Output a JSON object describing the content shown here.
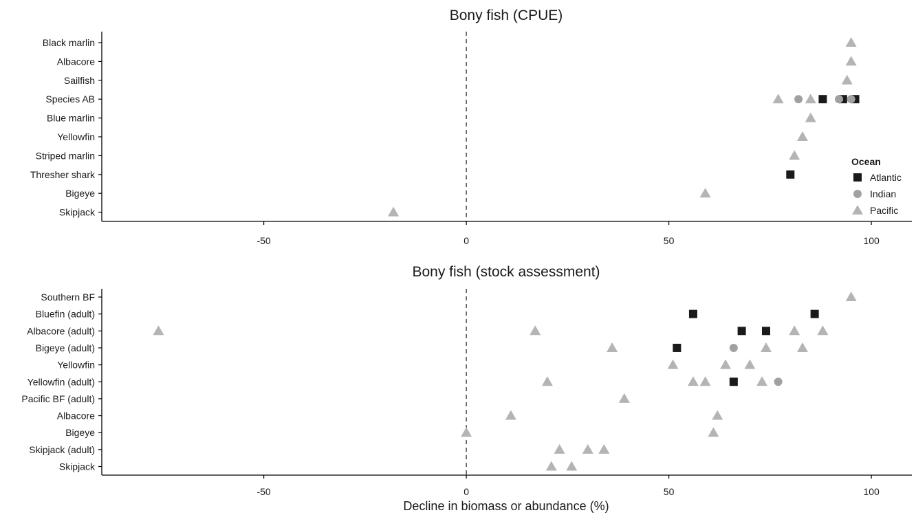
{
  "colors": {
    "Atlantic": "#1a1a1a",
    "Indian": "#a1a1a3",
    "Pacific": "#b4b4b6"
  },
  "shapes": {
    "Atlantic": "square",
    "Indian": "circle",
    "Pacific": "triangle"
  },
  "chart_data": {
    "type": "scatter",
    "xlabel": "Decline in biomass or abundance (%)",
    "xlim": [
      -90,
      110
    ],
    "xticks": [
      -50,
      0,
      50,
      100
    ],
    "reference_line": {
      "x": 0,
      "style": "dashed"
    },
    "legend": {
      "title": "Ocean",
      "placement": "right",
      "entries": [
        "Atlantic",
        "Indian",
        "Pacific"
      ]
    },
    "grid": false,
    "panels": [
      {
        "title": "Bony fish (CPUE)",
        "categories": [
          "Black marlin",
          "Albacore",
          "Sailfish",
          "Species AB",
          "Blue marlin",
          "Yellowfin",
          "Striped marlin",
          "Thresher shark",
          "Bigeye",
          "Skipjack"
        ],
        "points": [
          {
            "category": "Black marlin",
            "ocean": "Pacific",
            "x": 95
          },
          {
            "category": "Albacore",
            "ocean": "Pacific",
            "x": 95
          },
          {
            "category": "Sailfish",
            "ocean": "Pacific",
            "x": 94
          },
          {
            "category": "Species AB",
            "ocean": "Pacific",
            "x": 77
          },
          {
            "category": "Species AB",
            "ocean": "Indian",
            "x": 82
          },
          {
            "category": "Species AB",
            "ocean": "Pacific",
            "x": 85
          },
          {
            "category": "Species AB",
            "ocean": "Atlantic",
            "x": 88
          },
          {
            "category": "Species AB",
            "ocean": "Atlantic",
            "x": 93
          },
          {
            "category": "Species AB",
            "ocean": "Indian",
            "x": 92
          },
          {
            "category": "Species AB",
            "ocean": "Atlantic",
            "x": 96
          },
          {
            "category": "Species AB",
            "ocean": "Indian",
            "x": 95
          },
          {
            "category": "Blue marlin",
            "ocean": "Pacific",
            "x": 85
          },
          {
            "category": "Yellowfin",
            "ocean": "Pacific",
            "x": 83
          },
          {
            "category": "Striped marlin",
            "ocean": "Pacific",
            "x": 81
          },
          {
            "category": "Thresher shark",
            "ocean": "Atlantic",
            "x": 80
          },
          {
            "category": "Bigeye",
            "ocean": "Pacific",
            "x": 59
          },
          {
            "category": "Skipjack",
            "ocean": "Pacific",
            "x": -18
          }
        ]
      },
      {
        "title": "Bony fish (stock assessment)",
        "categories": [
          "Southern BF",
          "Bluefin (adult)",
          "Albacore (adult)",
          "Bigeye (adult)",
          "Yellowfin",
          "Yellowfin (adult)",
          "Pacific BF (adult)",
          "Albacore",
          "Bigeye",
          "Skipjack (adult)",
          "Skipjack"
        ],
        "points": [
          {
            "category": "Southern BF",
            "ocean": "Pacific",
            "x": 95
          },
          {
            "category": "Bluefin (adult)",
            "ocean": "Atlantic",
            "x": 56
          },
          {
            "category": "Bluefin (adult)",
            "ocean": "Atlantic",
            "x": 86
          },
          {
            "category": "Albacore (adult)",
            "ocean": "Pacific",
            "x": -76
          },
          {
            "category": "Albacore (adult)",
            "ocean": "Pacific",
            "x": 17
          },
          {
            "category": "Albacore (adult)",
            "ocean": "Atlantic",
            "x": 68
          },
          {
            "category": "Albacore (adult)",
            "ocean": "Atlantic",
            "x": 74
          },
          {
            "category": "Albacore (adult)",
            "ocean": "Pacific",
            "x": 81
          },
          {
            "category": "Albacore (adult)",
            "ocean": "Pacific",
            "x": 88
          },
          {
            "category": "Bigeye (adult)",
            "ocean": "Pacific",
            "x": 36
          },
          {
            "category": "Bigeye (adult)",
            "ocean": "Atlantic",
            "x": 52
          },
          {
            "category": "Bigeye (adult)",
            "ocean": "Indian",
            "x": 66
          },
          {
            "category": "Bigeye (adult)",
            "ocean": "Pacific",
            "x": 74
          },
          {
            "category": "Bigeye (adult)",
            "ocean": "Pacific",
            "x": 83
          },
          {
            "category": "Yellowfin",
            "ocean": "Pacific",
            "x": 51
          },
          {
            "category": "Yellowfin",
            "ocean": "Pacific",
            "x": 64
          },
          {
            "category": "Yellowfin",
            "ocean": "Pacific",
            "x": 70
          },
          {
            "category": "Yellowfin (adult)",
            "ocean": "Pacific",
            "x": 20
          },
          {
            "category": "Yellowfin (adult)",
            "ocean": "Pacific",
            "x": 56
          },
          {
            "category": "Yellowfin (adult)",
            "ocean": "Pacific",
            "x": 59
          },
          {
            "category": "Yellowfin (adult)",
            "ocean": "Atlantic",
            "x": 66
          },
          {
            "category": "Yellowfin (adult)",
            "ocean": "Pacific",
            "x": 73
          },
          {
            "category": "Yellowfin (adult)",
            "ocean": "Indian",
            "x": 77
          },
          {
            "category": "Pacific BF (adult)",
            "ocean": "Pacific",
            "x": 39
          },
          {
            "category": "Albacore",
            "ocean": "Pacific",
            "x": 11
          },
          {
            "category": "Albacore",
            "ocean": "Pacific",
            "x": 62
          },
          {
            "category": "Bigeye",
            "ocean": "Pacific",
            "x": 0
          },
          {
            "category": "Bigeye",
            "ocean": "Pacific",
            "x": 61
          },
          {
            "category": "Skipjack (adult)",
            "ocean": "Pacific",
            "x": 23
          },
          {
            "category": "Skipjack (adult)",
            "ocean": "Pacific",
            "x": 30
          },
          {
            "category": "Skipjack (adult)",
            "ocean": "Pacific",
            "x": 34
          },
          {
            "category": "Skipjack",
            "ocean": "Pacific",
            "x": 21
          },
          {
            "category": "Skipjack",
            "ocean": "Pacific",
            "x": 26
          }
        ]
      }
    ]
  }
}
